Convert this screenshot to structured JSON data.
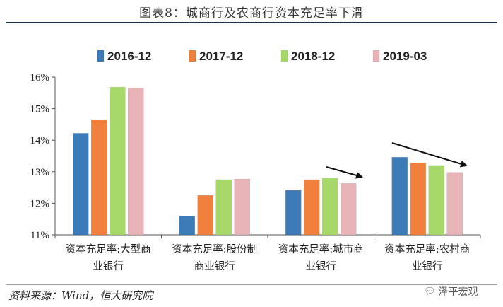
{
  "header": {
    "title": "图表8：城商行及农商行资本充足率下滑"
  },
  "footer": {
    "source": "资料来源：Wind，恒大研究院",
    "watermark": "泽平宏观",
    "watermark_icon": "wechat-icon"
  },
  "chart_data": {
    "type": "bar",
    "categories": [
      [
        "资本充足率:大型商",
        "业银行"
      ],
      [
        "资本充足率:股份制",
        "商业银行"
      ],
      [
        "资本充足率:城市商",
        "业银行"
      ],
      [
        "资本充足率:农村商",
        "业银行"
      ]
    ],
    "series": [
      {
        "name": "2016-12",
        "color": "#3d7ab8",
        "values": [
          14.22,
          11.6,
          12.41,
          13.46
        ]
      },
      {
        "name": "2017-12",
        "color": "#f0803c",
        "values": [
          14.65,
          12.25,
          12.75,
          13.28
        ]
      },
      {
        "name": "2018-12",
        "color": "#a6d96a",
        "values": [
          15.68,
          12.75,
          12.8,
          13.2
        ]
      },
      {
        "name": "2019-03",
        "color": "#e8b4b8",
        "values": [
          15.65,
          12.77,
          12.63,
          12.98
        ]
      }
    ],
    "y_ticks": [
      "11%",
      "12%",
      "13%",
      "14%",
      "15%",
      "16%"
    ],
    "ylim": [
      11,
      16
    ],
    "legend_position": "top",
    "grid": false,
    "annotations": [
      "downward-arrow over 城市商业银行",
      "downward-arrow over 农村商业银行"
    ]
  }
}
